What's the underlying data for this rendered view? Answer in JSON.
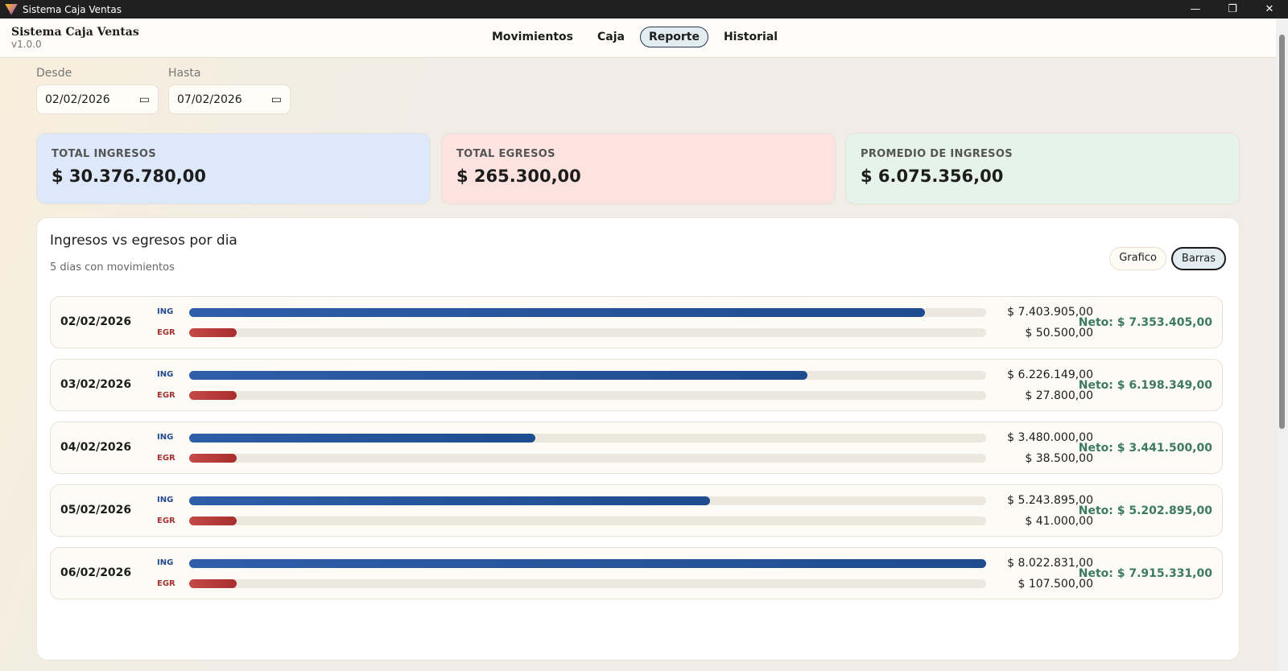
{
  "window": {
    "title": "Sistema Caja Ventas",
    "controls": [
      "—",
      "❐",
      "✕"
    ]
  },
  "header": {
    "brand": "Sistema Caja Ventas",
    "version": "v1.0.0",
    "nav": [
      {
        "label": "Movimientos"
      },
      {
        "label": "Caja"
      },
      {
        "label": "Reporte",
        "active": true
      },
      {
        "label": "Historial"
      }
    ]
  },
  "filters": {
    "from_label": "Desde",
    "from_value": "02/02/2026",
    "to_label": "Hasta",
    "to_value": "07/02/2026",
    "calendar_icon": "calendar-icon"
  },
  "stats": [
    {
      "label": "TOTAL INGRESOS",
      "value": "$ 30.376.780,00",
      "color": "#dde9fb"
    },
    {
      "label": "TOTAL EGRESOS",
      "value": "$ 265.300,00",
      "color": "#fde3df"
    },
    {
      "label": "PROMEDIO DE INGRESOS",
      "value": "$ 6.075.356,00",
      "color": "#e5f3ea"
    }
  ],
  "chart": {
    "title": "Ingresos vs egresos por dia",
    "subtitle": "5 dias con movimientos",
    "toggle": [
      "Grafico",
      "Barras"
    ],
    "active_toggle": "Barras",
    "ing_tag": "ING",
    "egr_tag": "EGR",
    "rows": [
      {
        "date": "02/02/2026",
        "ing": "$ 7.403.905,00",
        "egr": "$ 50.500,00",
        "neto": "Neto: $ 7.353.405,00",
        "ing_frac": 0.923,
        "egr_frac": 0.06
      },
      {
        "date": "03/02/2026",
        "ing": "$ 6.226.149,00",
        "egr": "$ 27.800,00",
        "neto": "Neto: $ 6.198.349,00",
        "ing_frac": 0.776,
        "egr_frac": 0.06
      },
      {
        "date": "04/02/2026",
        "ing": "$ 3.480.000,00",
        "egr": "$ 38.500,00",
        "neto": "Neto: $ 3.441.500,00",
        "ing_frac": 0.434,
        "egr_frac": 0.06
      },
      {
        "date": "05/02/2026",
        "ing": "$ 5.243.895,00",
        "egr": "$ 41.000,00",
        "neto": "Neto: $ 5.202.895,00",
        "ing_frac": 0.654,
        "egr_frac": 0.06
      },
      {
        "date": "06/02/2026",
        "ing": "$ 8.022.831,00",
        "egr": "$ 107.500,00",
        "neto": "Neto: $ 7.915.331,00",
        "ing_frac": 1.0,
        "egr_frac": 0.06
      }
    ]
  }
}
